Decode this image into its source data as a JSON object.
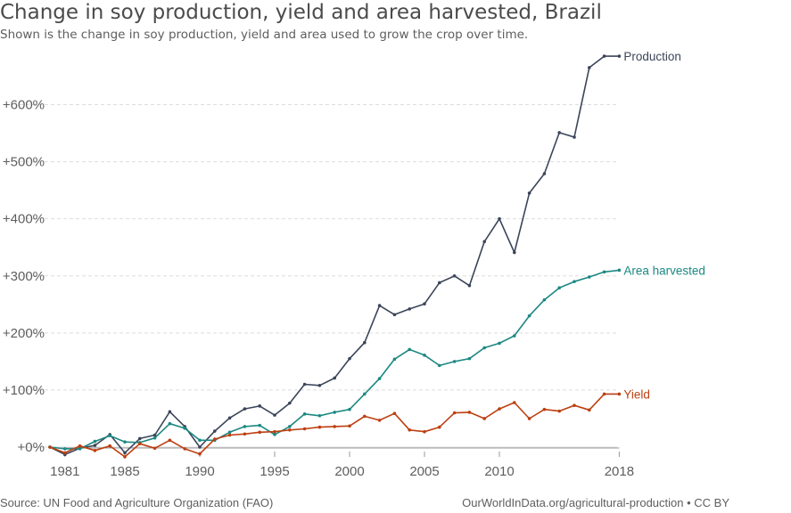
{
  "header": {
    "title": "Change in soy production, yield and area harvested, Brazil",
    "subtitle": "Shown is the change in soy production, yield and area used to grow the crop over time."
  },
  "footer": {
    "source": "Source: UN Food and Agriculture Organization (FAO)",
    "license": "OurWorldInData.org/agricultural-production • CC BY"
  },
  "chart_data": {
    "type": "line",
    "title": "Change in soy production, yield and area harvested, Brazil",
    "subtitle": "Shown is the change in soy production, yield and area used to grow the crop over time.",
    "xlabel": "",
    "ylabel": "",
    "xlim": [
      1961,
      2018
    ],
    "ylim": [
      0,
      700
    ],
    "grid": true,
    "x_ticks": [
      1981,
      1985,
      1990,
      1995,
      2000,
      2005,
      2010,
      2018
    ],
    "x_tick_labels": [
      "1981",
      "1985",
      "1990",
      "1995",
      "2000",
      "2005",
      "2010",
      "2018"
    ],
    "y_ticks": [
      0,
      100,
      200,
      300,
      400,
      500,
      600
    ],
    "y_tick_labels": [
      "+0%",
      "+100%",
      "+200%",
      "+300%",
      "+400%",
      "+500%",
      "+600%"
    ],
    "x": [
      1980,
      1981,
      1982,
      1983,
      1984,
      1985,
      1986,
      1987,
      1988,
      1989,
      1990,
      1991,
      1992,
      1993,
      1994,
      1995,
      1996,
      1997,
      1998,
      1999,
      2000,
      2001,
      2002,
      2003,
      2004,
      2005,
      2006,
      2007,
      2008,
      2009,
      2010,
      2011,
      2012,
      2013,
      2014,
      2015,
      2016,
      2017,
      2018
    ],
    "series": [
      {
        "name": "Production",
        "color": "#3b4559",
        "values": [
          0,
          -13,
          -2,
          3,
          22,
          -10,
          15,
          21,
          62,
          36,
          0,
          28,
          51,
          67,
          72,
          56,
          77,
          110,
          108,
          121,
          155,
          183,
          248,
          232,
          242,
          251,
          288,
          300,
          283,
          360,
          400,
          341,
          445,
          479,
          551,
          543,
          665,
          685,
          685
        ]
      },
      {
        "name": "Area harvested",
        "color": "#1c8882",
        "values": [
          0,
          -3,
          -3,
          10,
          20,
          9,
          8,
          16,
          41,
          33,
          12,
          12,
          26,
          36,
          38,
          22,
          36,
          58,
          55,
          61,
          66,
          93,
          120,
          154,
          171,
          161,
          143,
          150,
          155,
          174,
          182,
          195,
          230,
          258,
          279,
          290,
          298,
          307,
          310
        ]
      },
      {
        "name": "Yield",
        "color": "#bd3f11",
        "values": [
          0,
          -10,
          2,
          -6,
          2,
          -17,
          6,
          -2,
          12,
          -3,
          -12,
          14,
          21,
          23,
          26,
          27,
          30,
          32,
          35,
          36,
          37,
          54,
          47,
          59,
          30,
          27,
          35,
          60,
          61,
          50,
          67,
          78,
          50,
          66,
          63,
          73,
          65,
          93,
          93
        ]
      }
    ]
  }
}
